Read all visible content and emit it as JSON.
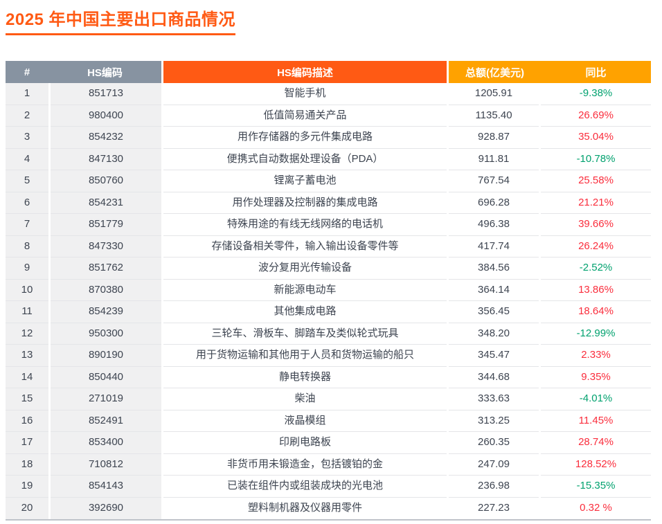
{
  "title": "2025 年中国主要出口商品情况",
  "colors": {
    "title_orange": "#FF5A14",
    "header_gray": "#8793A1",
    "header_orange_dark": "#FF5A14",
    "header_orange_light": "#FFA200",
    "shaded_column_bg": "#F0F0F1",
    "body_text": "#3D4450",
    "yoy_up_red": "#FA2D3C",
    "yoy_down_green": "#00A16E"
  },
  "table": {
    "headers": {
      "rank": "#",
      "hs_code": "HS编码",
      "hs_desc": "HS编码描述",
      "total": "总额(亿美元)",
      "yoy": "同比"
    },
    "rows": [
      {
        "rank": "1",
        "code": "851713",
        "desc": "智能手机",
        "total": "1205.91",
        "yoy": "-9.38%",
        "trend": "down"
      },
      {
        "rank": "2",
        "code": "980400",
        "desc": "低值简易通关产品",
        "total": "1135.40",
        "yoy": "26.69%",
        "trend": "up"
      },
      {
        "rank": "3",
        "code": "854232",
        "desc": "用作存储器的多元件集成电路",
        "total": "928.87",
        "yoy": "35.04%",
        "trend": "up"
      },
      {
        "rank": "4",
        "code": "847130",
        "desc": "便携式自动数据处理设备（PDA）",
        "total": "911.81",
        "yoy": "-10.78%",
        "trend": "down"
      },
      {
        "rank": "5",
        "code": "850760",
        "desc": "锂离子蓄电池",
        "total": "767.54",
        "yoy": "25.58%",
        "trend": "up"
      },
      {
        "rank": "6",
        "code": "854231",
        "desc": "用作处理器及控制器的集成电路",
        "total": "696.28",
        "yoy": "21.21%",
        "trend": "up"
      },
      {
        "rank": "7",
        "code": "851779",
        "desc": "特殊用途的有线无线网络的电话机",
        "total": "496.38",
        "yoy": "39.66%",
        "trend": "up"
      },
      {
        "rank": "8",
        "code": "847330",
        "desc": "存储设备相关零件，输入输出设备零件等",
        "total": "417.74",
        "yoy": "26.24%",
        "trend": "up"
      },
      {
        "rank": "9",
        "code": "851762",
        "desc": "波分复用光传输设备",
        "total": "384.56",
        "yoy": "-2.52%",
        "trend": "down"
      },
      {
        "rank": "10",
        "code": "870380",
        "desc": "新能源电动车",
        "total": "364.14",
        "yoy": "13.86%",
        "trend": "up"
      },
      {
        "rank": "11",
        "code": "854239",
        "desc": "其他集成电路",
        "total": "356.45",
        "yoy": "18.64%",
        "trend": "up"
      },
      {
        "rank": "12",
        "code": "950300",
        "desc": "三轮车、滑板车、脚踏车及类似轮式玩具",
        "total": "348.20",
        "yoy": "-12.99%",
        "trend": "down"
      },
      {
        "rank": "13",
        "code": "890190",
        "desc": "用于货物运输和其他用于人员和货物运输的船只",
        "total": "345.47",
        "yoy": "2.33%",
        "trend": "up"
      },
      {
        "rank": "14",
        "code": "850440",
        "desc": "静电转换器",
        "total": "344.68",
        "yoy": "9.35%",
        "trend": "up"
      },
      {
        "rank": "15",
        "code": "271019",
        "desc": "柴油",
        "total": "333.63",
        "yoy": "-4.01%",
        "trend": "down"
      },
      {
        "rank": "16",
        "code": "852491",
        "desc": "液晶模组",
        "total": "313.25",
        "yoy": "11.45%",
        "trend": "up"
      },
      {
        "rank": "17",
        "code": "853400",
        "desc": "印刷电路板",
        "total": "260.35",
        "yoy": "28.74%",
        "trend": "up"
      },
      {
        "rank": "18",
        "code": "710812",
        "desc": "非货币用未锻造金，包括镀铂的金",
        "total": "247.09",
        "yoy": "128.52%",
        "trend": "up"
      },
      {
        "rank": "19",
        "code": "854143",
        "desc": "已装在组件内或组装成块的光电池",
        "total": "236.98",
        "yoy": "-15.35%",
        "trend": "down"
      },
      {
        "rank": "20",
        "code": "392690",
        "desc": "塑料制机器及仪器用零件",
        "total": "227.23",
        "yoy": "0.32 %",
        "trend": "up"
      }
    ]
  }
}
